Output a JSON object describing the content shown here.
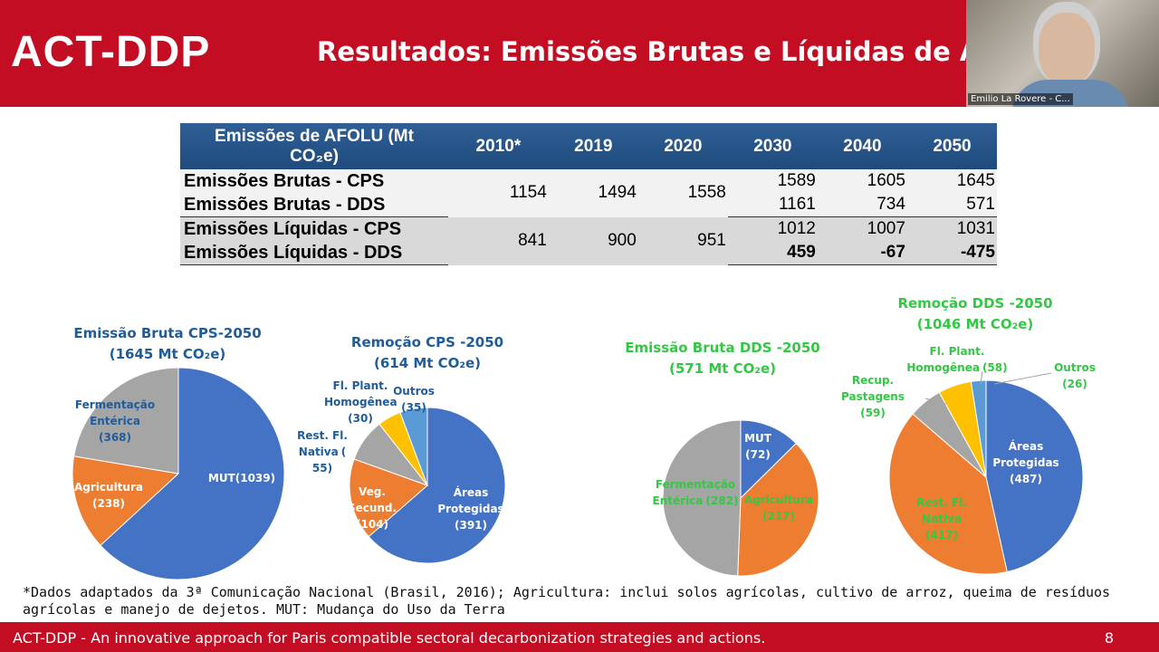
{
  "header": {
    "logo": "ACT-DDP",
    "title": "Resultados: Emissões Brutas e Líquidas de AFOL"
  },
  "participant": "Emilio La Rovere - C...",
  "table": {
    "header": [
      "Emissões de AFOLU (Mt CO₂e)",
      "2010*",
      "2019",
      "2020",
      "2030",
      "2040",
      "2050"
    ],
    "groups": [
      {
        "labels": [
          "Emissões Brutas - CPS",
          "Emissões Brutas - DDS"
        ],
        "shared": [
          1154,
          1494,
          1558
        ],
        "split": [
          [
            1589,
            1161
          ],
          [
            1605,
            734
          ],
          [
            1645,
            571
          ]
        ]
      },
      {
        "labels": [
          "Emissões Líquidas - CPS",
          "Emissões Líquidas - DDS"
        ],
        "shared": [
          841,
          900,
          951
        ],
        "split": [
          [
            1012,
            459
          ],
          [
            1007,
            -67
          ],
          [
            1031,
            -475
          ]
        ]
      }
    ]
  },
  "chart_data": [
    {
      "type": "pie",
      "title": "Emissão Bruta CPS-2050",
      "subtitle": "(1645 Mt CO₂e)",
      "categories": [
        "MUT",
        "Agricultura",
        "Fermentação Entérica"
      ],
      "values": [
        1039,
        238,
        368
      ],
      "value_labels": [
        "(1039)",
        "(238)",
        "(368)"
      ],
      "colors": [
        "#4472c4",
        "#ed7d31",
        "#a5a5a5"
      ]
    },
    {
      "type": "pie",
      "title": "Remoção CPS -2050",
      "subtitle": "(614 Mt CO₂e)",
      "categories": [
        "Áreas Protegidas",
        "Veg. Secund.",
        "Rest. Fl. Nativa",
        "Fl. Plant. Homogênea",
        "Outros"
      ],
      "values": [
        391,
        104,
        55,
        30,
        35
      ],
      "value_labels": [
        "(391)",
        "(104)",
        "( 55)",
        "(30)",
        "(35)"
      ],
      "colors": [
        "#4472c4",
        "#ed7d31",
        "#a5a5a5",
        "#ffc000",
        "#5b9bd5"
      ]
    },
    {
      "type": "pie",
      "title": "Emissão Bruta DDS -2050",
      "subtitle": "(571 Mt CO₂e)",
      "categories": [
        "MUT",
        "Agricultura",
        "Fermentação Entérica"
      ],
      "values": [
        72,
        217,
        282
      ],
      "value_labels": [
        "(72)",
        "(217)",
        "(282)"
      ],
      "colors": [
        "#4472c4",
        "#ed7d31",
        "#a5a5a5"
      ]
    },
    {
      "type": "pie",
      "title": "Remoção DDS -2050",
      "subtitle": "(1046 Mt CO₂e)",
      "categories": [
        "Áreas Protegidas",
        "Rest. Fl. Nativa",
        "Recup. Pastagens",
        "Fl. Plant. Homogênea",
        "Outros"
      ],
      "values": [
        487,
        417,
        59,
        58,
        26
      ],
      "value_labels": [
        "(487)",
        "(417)",
        "(59)",
        "(58)",
        "(26)"
      ],
      "colors": [
        "#4472c4",
        "#ed7d31",
        "#a5a5a5",
        "#ffc000",
        "#5b9bd5"
      ]
    }
  ],
  "footnote": "*Dados adaptados da 3ª Comunicação Nacional (Brasil, 2016); Agricultura: inclui solos agrícolas, cultivo de arroz, queima de resíduos agrícolas e manejo de dejetos. MUT: Mudança do Uso da Terra",
  "footer": {
    "text": "ACT-DDP - An innovative approach for Paris compatible sectoral decarbonization strategies and actions.",
    "page": "8"
  }
}
